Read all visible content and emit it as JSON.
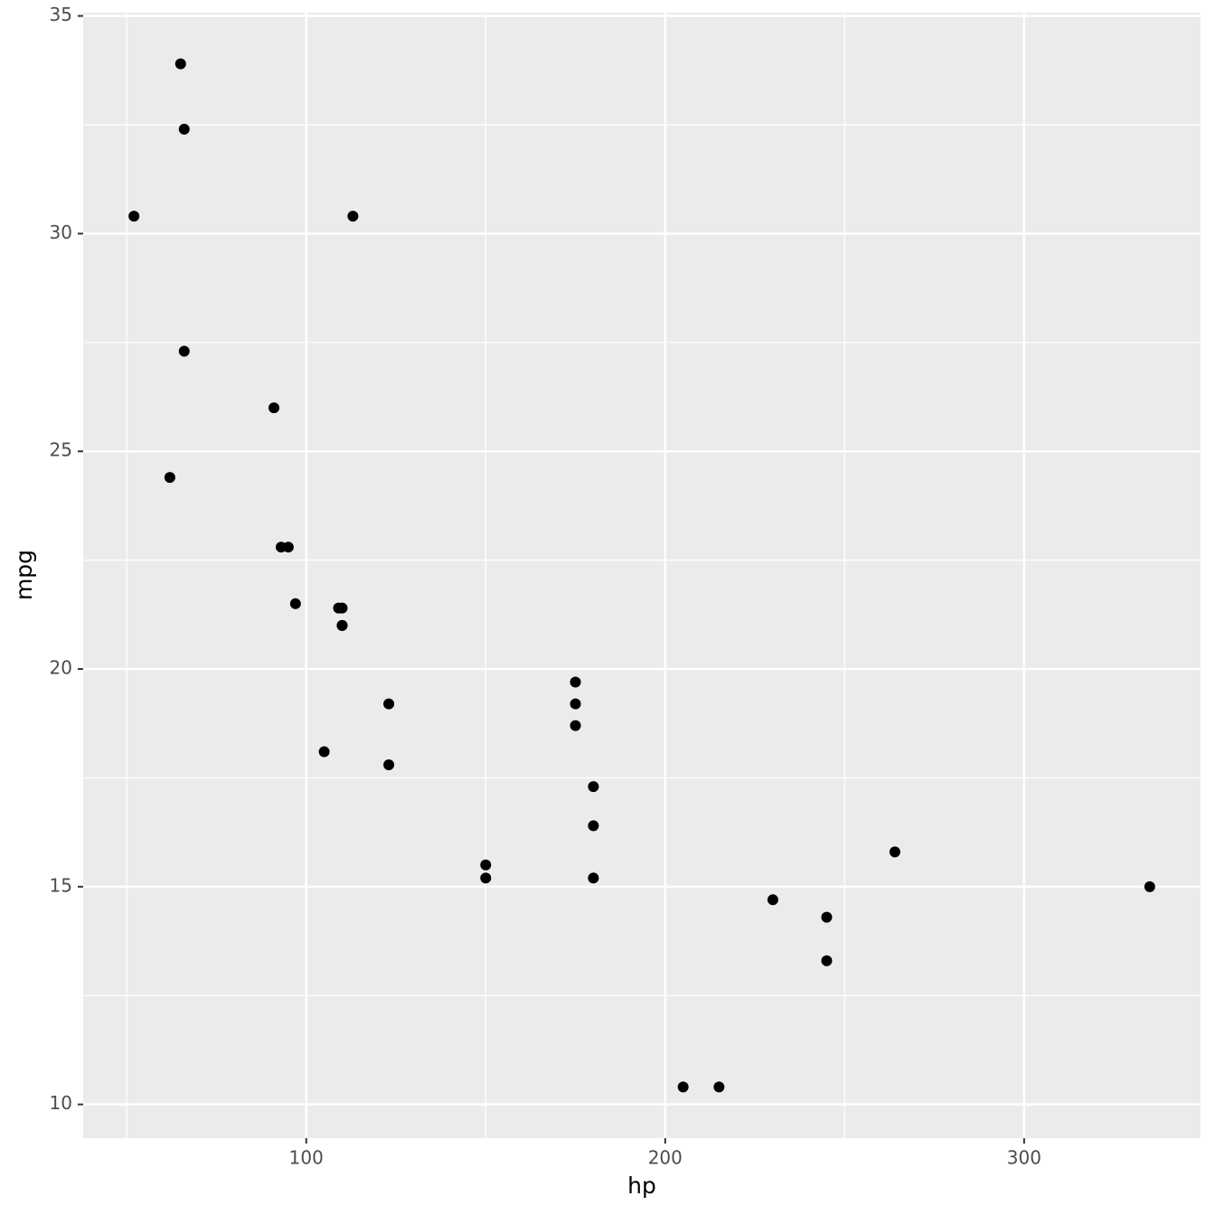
{
  "chart_data": {
    "type": "scatter",
    "x_label": "hp",
    "y_label": "mpg",
    "x": [
      110,
      110,
      93,
      110,
      175,
      105,
      245,
      62,
      95,
      123,
      123,
      180,
      180,
      180,
      205,
      215,
      230,
      66,
      52,
      65,
      97,
      150,
      150,
      245,
      175,
      66,
      91,
      113,
      264,
      175,
      335,
      109
    ],
    "values": [
      21.0,
      21.0,
      22.8,
      21.4,
      18.7,
      18.1,
      14.3,
      24.4,
      22.8,
      19.2,
      17.8,
      16.4,
      17.3,
      15.2,
      10.4,
      10.4,
      14.7,
      32.4,
      30.4,
      33.9,
      21.5,
      15.5,
      15.2,
      13.3,
      19.2,
      27.3,
      26.0,
      30.4,
      15.8,
      19.7,
      15.0,
      21.4
    ],
    "color": "#000000",
    "xlim": [
      37.85,
      349.15
    ],
    "ylim": [
      9.225,
      35.075
    ],
    "xticks": [
      100,
      200,
      300
    ],
    "yticks": [
      10,
      15,
      20,
      25,
      30,
      35
    ],
    "x_minor_grid": [
      50,
      150,
      250
    ],
    "y_minor_grid": [
      12.5,
      17.5,
      22.5,
      27.5,
      32.5
    ],
    "grid": true
  }
}
